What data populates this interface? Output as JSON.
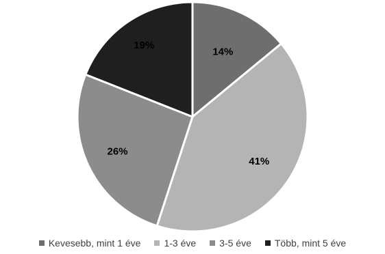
{
  "chart_data": {
    "type": "pie",
    "title": "",
    "legend_position": "bottom",
    "slices": [
      {
        "label": "Kevesebb, mint 1 éve",
        "value": 14,
        "display": "14%",
        "color": "#6e6e6e",
        "label_color": "#000000"
      },
      {
        "label": "1-3 éve",
        "value": 41,
        "display": "41%",
        "color": "#b4b4b4",
        "label_color": "#000000"
      },
      {
        "label": "3-5 éve",
        "value": 26,
        "display": "26%",
        "color": "#8c8c8c",
        "label_color": "#000000"
      },
      {
        "label": "Több, mint 5 éve",
        "value": 19,
        "display": "19%",
        "color": "#1f1f1f",
        "label_color": "#000000"
      }
    ]
  }
}
